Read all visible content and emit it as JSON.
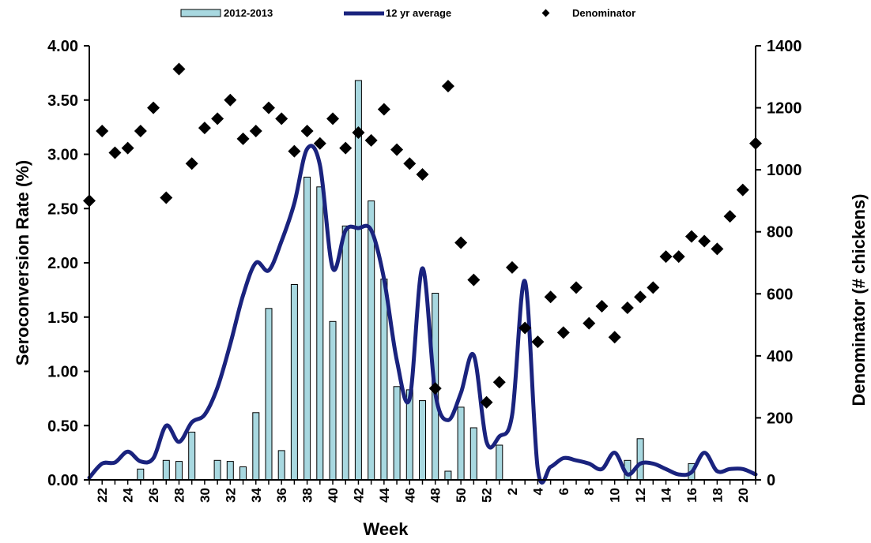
{
  "chart_data": {
    "type": "bar",
    "legend_position": "top",
    "grid": false,
    "xlabel": "Week",
    "ylabel_left": "Seroconversion Rate (%)",
    "ylabel_right": "Denominator  (# chickens)",
    "ylim_left": [
      0,
      4
    ],
    "ylim_right": [
      0,
      1400
    ],
    "yticks_left": [
      "0.00",
      "0.50",
      "1.00",
      "1.50",
      "2.00",
      "2.50",
      "3.00",
      "3.50",
      "4.00"
    ],
    "yticks_right": [
      "0",
      "200",
      "400",
      "600",
      "800",
      "1000",
      "1200",
      "1400"
    ],
    "weeks": [
      21,
      22,
      23,
      24,
      25,
      26,
      27,
      28,
      29,
      30,
      31,
      32,
      33,
      34,
      35,
      36,
      37,
      38,
      39,
      40,
      41,
      42,
      43,
      44,
      45,
      46,
      47,
      48,
      49,
      50,
      51,
      52,
      1,
      2,
      3,
      4,
      5,
      6,
      7,
      8,
      9,
      10,
      11,
      12,
      13,
      14,
      15,
      16,
      17,
      18,
      19,
      20,
      21
    ],
    "x_tick_labels": [
      "22",
      "24",
      "26",
      "28",
      "30",
      "32",
      "34",
      "36",
      "38",
      "40",
      "42",
      "44",
      "46",
      "48",
      "50",
      "52",
      "2",
      "4",
      "6",
      "8",
      "10",
      "12",
      "14",
      "16",
      "18",
      "20"
    ],
    "series": [
      {
        "name": "2012-2013",
        "type": "bar",
        "color": "#a8d8e0",
        "values": [
          0,
          0,
          0,
          0,
          0.1,
          0,
          0.18,
          0.17,
          0.44,
          0,
          0.18,
          0.17,
          0.12,
          0.62,
          1.58,
          0.27,
          1.8,
          2.79,
          2.7,
          1.46,
          2.34,
          3.68,
          2.57,
          1.85,
          0.86,
          0.83,
          0.73,
          1.72,
          0.08,
          0.67,
          0.48,
          0,
          0.32,
          0,
          0,
          0,
          0,
          0,
          0,
          0,
          0,
          0,
          0.18,
          0.38,
          0,
          0,
          0,
          0.15,
          0,
          0,
          0,
          0,
          0
        ]
      },
      {
        "name": "12 yr average",
        "type": "line",
        "color": "#1a237e",
        "values": [
          0.02,
          0.15,
          0.16,
          0.26,
          0.17,
          0.2,
          0.5,
          0.35,
          0.53,
          0.6,
          0.85,
          1.25,
          1.7,
          2.0,
          1.93,
          2.2,
          2.55,
          3.05,
          2.9,
          1.95,
          2.3,
          2.32,
          2.3,
          1.85,
          1.1,
          0.75,
          1.95,
          0.8,
          0.55,
          0.8,
          1.15,
          0.35,
          0.4,
          0.6,
          1.83,
          0.1,
          0.12,
          0.2,
          0.18,
          0.15,
          0.1,
          0.25,
          0.05,
          0.15,
          0.15,
          0.1,
          0.05,
          0.07,
          0.25,
          0.08,
          0.1,
          0.1,
          0.05
        ]
      },
      {
        "name": "Denominator",
        "type": "scatter",
        "axis": "right",
        "color": "#000000",
        "values": [
          900,
          1125,
          1055,
          1070,
          1125,
          1200,
          910,
          1325,
          1020,
          1135,
          1165,
          1225,
          1100,
          1125,
          1200,
          1165,
          1060,
          1125,
          1085,
          1165,
          1070,
          1120,
          1095,
          1195,
          1065,
          1020,
          985,
          295,
          1270,
          765,
          645,
          250,
          315,
          685,
          490,
          445,
          590,
          475,
          620,
          505,
          560,
          460,
          555,
          590,
          620,
          720,
          720,
          785,
          770,
          745,
          850,
          935,
          1085
        ]
      }
    ]
  }
}
